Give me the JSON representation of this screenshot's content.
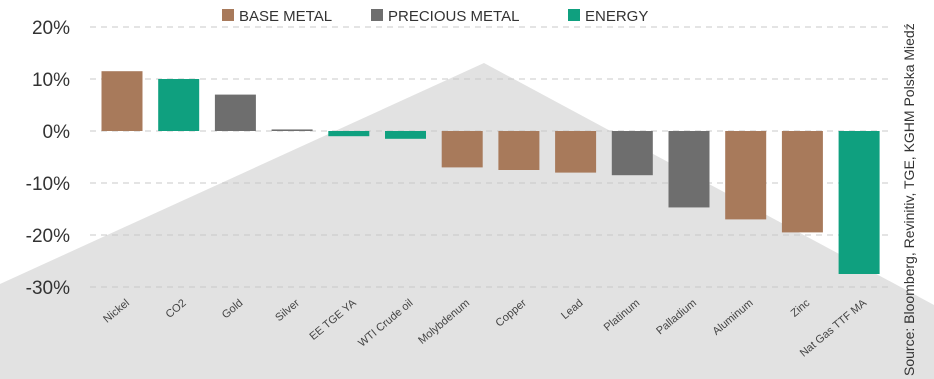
{
  "chart_data": {
    "type": "bar",
    "categories": [
      "Nickel",
      "CO2",
      "Gold",
      "Silver",
      "EE TGE YA",
      "WTI Crude oil",
      "Molybdenum",
      "Copper",
      "Lead",
      "Platinum",
      "Palladium",
      "Aluminum",
      "Zinc",
      "Nat Gas TTF MA"
    ],
    "values": [
      11.5,
      10.0,
      7.0,
      0.3,
      -1.0,
      -1.5,
      -7.0,
      -7.5,
      -8.0,
      -8.5,
      -14.7,
      -17.0,
      -19.5,
      -27.5
    ],
    "groups": [
      "BASE METAL",
      "ENERGY",
      "PRECIOUS METAL",
      "PRECIOUS METAL",
      "ENERGY",
      "ENERGY",
      "BASE METAL",
      "BASE METAL",
      "BASE METAL",
      "PRECIOUS METAL",
      "PRECIOUS METAL",
      "BASE METAL",
      "BASE METAL",
      "ENERGY"
    ],
    "y_ticks": [
      "20%",
      "10%",
      "0%",
      "-10%",
      "-20%",
      "-30%"
    ],
    "y_tick_values": [
      20,
      10,
      0,
      -10,
      -20,
      -30
    ],
    "ylim": [
      -30,
      20
    ],
    "grid": true,
    "legend_position": "top",
    "legend": [
      {
        "name": "BASE METAL",
        "color": "#a87a5b"
      },
      {
        "name": "PRECIOUS METAL",
        "color": "#6e6e6e"
      },
      {
        "name": "ENERGY",
        "color": "#0fa07f"
      }
    ],
    "source": "Source: Bloomberg, Revinitiv, TGE,  KGHM Polska Miedź"
  }
}
